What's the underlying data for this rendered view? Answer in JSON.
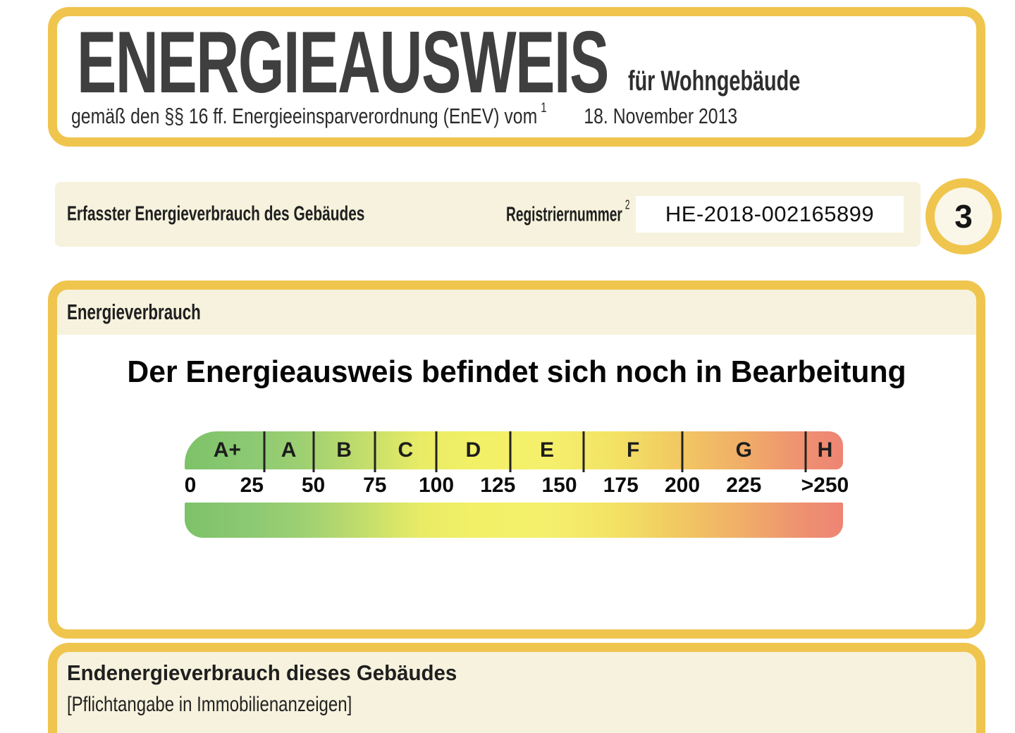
{
  "colors": {
    "border_yellow": "#efc54e",
    "cream_panel": "#f6f2dd",
    "title_gray": "#3f3f3f",
    "scale_green": "#7dc268",
    "scale_yellow": "#f2f066",
    "scale_red": "#ee8474"
  },
  "header": {
    "title": "ENERGIEAUSWEIS",
    "building_type": "für Wohngebäude",
    "law_text": "gemäß den §§ 16 ff. Energieeinsparverordnung (EnEV) vom",
    "law_footnote": "1",
    "law_date": "18. November 2013"
  },
  "registration": {
    "section_label": "Erfasster Energieverbrauch des Gebäudes",
    "number_label": "Registriernummer",
    "number_footnote": "2",
    "number_value": "HE-2018-002165899",
    "page_badge": "3"
  },
  "consumption": {
    "section_title": "Energieverbrauch",
    "status_message": "Der Energieausweis befindet sich noch in Bearbeitung"
  },
  "scale": {
    "classes": [
      {
        "label": "A+",
        "min": 0,
        "max": 30
      },
      {
        "label": "A",
        "min": 30,
        "max": 50
      },
      {
        "label": "B",
        "min": 50,
        "max": 75
      },
      {
        "label": "C",
        "min": 75,
        "max": 100
      },
      {
        "label": "D",
        "min": 100,
        "max": 130
      },
      {
        "label": "E",
        "min": 130,
        "max": 160
      },
      {
        "label": "F",
        "min": 160,
        "max": 200
      },
      {
        "label": "G",
        "min": 200,
        "max": 250
      },
      {
        "label": "H",
        "min": 250,
        "max": 266
      }
    ],
    "ticks": [
      {
        "label": "0",
        "value": 0
      },
      {
        "label": "25",
        "value": 25
      },
      {
        "label": "50",
        "value": 50
      },
      {
        "label": "75",
        "value": 75
      },
      {
        "label": "100",
        "value": 100
      },
      {
        "label": "125",
        "value": 125
      },
      {
        "label": "150",
        "value": 150
      },
      {
        "label": "175",
        "value": 175
      },
      {
        "label": "200",
        "value": 200
      },
      {
        "label": "225",
        "value": 225
      },
      {
        "label": ">250",
        "value": 258
      }
    ]
  },
  "footer": {
    "section_title": "Endenergieverbrauch dieses Gebäudes",
    "note": "[Pflichtangabe in Immobilienanzeigen]"
  }
}
